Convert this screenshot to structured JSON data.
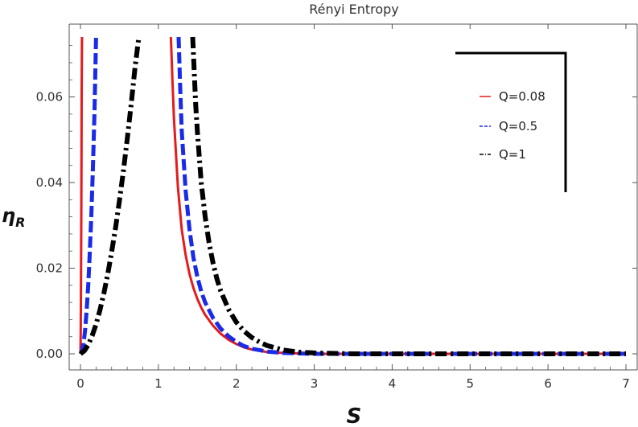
{
  "chart_data": {
    "type": "line",
    "title": "Rényi Entropy",
    "xlabel": "S",
    "ylabel_main": "η",
    "ylabel_sub": "R",
    "xlim": [
      0,
      7
    ],
    "ylim": [
      0,
      0.074
    ],
    "x_ticks": [
      0,
      1,
      2,
      3,
      4,
      5,
      6,
      7
    ],
    "x_tick_labels": [
      "0",
      "1",
      "2",
      "3",
      "4",
      "5",
      "6",
      "7"
    ],
    "y_ticks": [
      0,
      0.02,
      0.04,
      0.06
    ],
    "y_tick_labels": [
      "0.00",
      "0.02",
      "0.04",
      "0.06"
    ],
    "legend_position": "top-right",
    "series": [
      {
        "name": "Q=0.08",
        "color": "#e41a1c",
        "style": "solid",
        "x": [
          0.0,
          0.003,
          0.006,
          0.01,
          0.013,
          0.016,
          0.02,
          null,
          1.16,
          1.18,
          1.2,
          1.25,
          1.3,
          1.35,
          1.4,
          1.45,
          1.5,
          1.55,
          1.6,
          1.7,
          1.8,
          1.9,
          2.0,
          2.1,
          2.2,
          2.4,
          2.6,
          2.8,
          3.0,
          3.5,
          4.0,
          5.0,
          6.0,
          7.0
        ],
        "y": [
          0.0,
          0.0046,
          0.0138,
          0.03,
          0.046,
          0.061,
          0.074,
          null,
          0.074,
          0.064,
          0.055,
          0.039,
          0.029,
          0.023,
          0.0186,
          0.0154,
          0.0128,
          0.0108,
          0.0091,
          0.0066,
          0.0047,
          0.0033,
          0.0023,
          0.0015,
          0.001,
          0.0004,
          0.0002,
          0.0001,
          0.0,
          0.0,
          0.0,
          0.0,
          0.0,
          0.0
        ]
      },
      {
        "name": "Q=0.5",
        "color": "#1a2be8",
        "style": "dashed",
        "x": [
          0.0,
          0.02,
          0.04,
          0.06,
          0.08,
          0.1,
          0.12,
          0.14,
          0.16,
          0.18,
          0.2,
          null,
          1.26,
          1.28,
          1.3,
          1.35,
          1.4,
          1.45,
          1.5,
          1.55,
          1.6,
          1.7,
          1.8,
          1.9,
          2.0,
          2.1,
          2.2,
          2.4,
          2.6,
          2.8,
          3.0,
          3.5,
          4.0,
          5.0,
          6.0,
          7.0
        ],
        "y": [
          0.0,
          0.0007,
          0.0024,
          0.0056,
          0.0101,
          0.0161,
          0.0236,
          0.0327,
          0.0435,
          0.056,
          0.074,
          null,
          0.074,
          0.062,
          0.052,
          0.038,
          0.029,
          0.0225,
          0.018,
          0.0146,
          0.012,
          0.0084,
          0.0059,
          0.0041,
          0.0028,
          0.0018,
          0.0012,
          0.0005,
          0.0002,
          0.0001,
          0.0,
          0.0,
          0.0,
          0.0,
          0.0,
          0.0
        ]
      },
      {
        "name": "Q=1",
        "color": "#000000",
        "style": "dashdot",
        "x": [
          0.0,
          0.05,
          0.1,
          0.15,
          0.2,
          0.25,
          0.3,
          0.35,
          0.4,
          0.45,
          0.5,
          0.55,
          0.6,
          0.65,
          0.7,
          0.75,
          null,
          1.44,
          1.46,
          1.48,
          1.5,
          1.55,
          1.6,
          1.65,
          1.7,
          1.75,
          1.8,
          1.9,
          2.0,
          2.1,
          2.2,
          2.3,
          2.4,
          2.6,
          2.8,
          3.0,
          3.5,
          4.0,
          5.0,
          6.0,
          7.0
        ],
        "y": [
          0.0,
          0.0007,
          0.0021,
          0.0042,
          0.0069,
          0.0102,
          0.0141,
          0.0186,
          0.0237,
          0.0294,
          0.0357,
          0.0426,
          0.0501,
          0.0582,
          0.0668,
          0.074,
          null,
          0.074,
          0.066,
          0.058,
          0.052,
          0.04,
          0.032,
          0.026,
          0.0213,
          0.0176,
          0.0147,
          0.0104,
          0.0074,
          0.0053,
          0.0038,
          0.0027,
          0.0019,
          0.0009,
          0.0004,
          0.0002,
          0.0,
          0.0,
          0.0,
          0.0,
          0.0
        ]
      }
    ]
  },
  "colors": {
    "axis": "#555555",
    "legend_frame": "#000000",
    "background": "#ffffff"
  }
}
